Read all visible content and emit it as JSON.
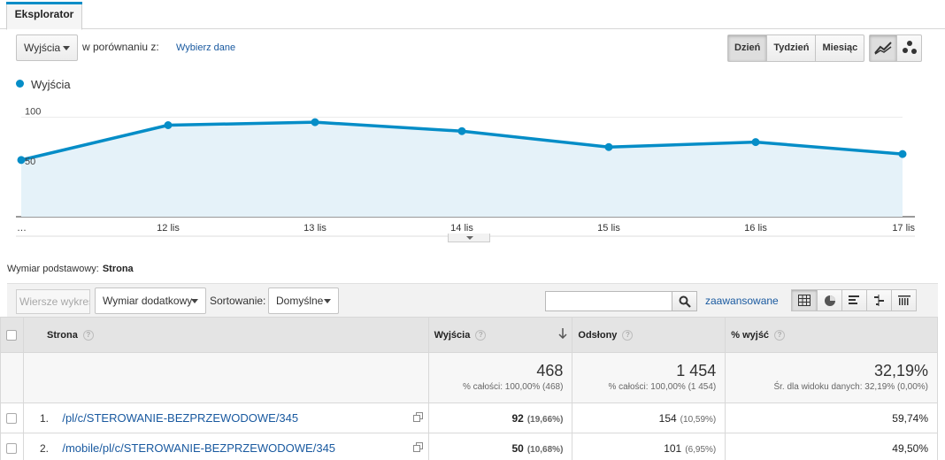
{
  "tabs": {
    "active": "Eksplorator"
  },
  "controls": {
    "metric_select": "Wyjścia",
    "compare_label": "w porównaniu z:",
    "compare_link": "Wybierz dane",
    "granularity": [
      "Dzień",
      "Tydzień",
      "Miesiąc"
    ],
    "granularity_active": "Dzień",
    "chart_type_icons": [
      "line-chart-icon",
      "motion-chart-icon"
    ]
  },
  "chart_data": {
    "type": "area",
    "series": [
      {
        "name": "Wyjścia",
        "values": [
          57,
          92,
          95,
          86,
          70,
          75,
          63
        ]
      }
    ],
    "x": [
      "…",
      "12 lis",
      "13 lis",
      "14 lis",
      "15 lis",
      "16 lis",
      "17 lis"
    ],
    "yticks": [
      100,
      50
    ],
    "ylim": [
      0,
      120
    ],
    "color": "#058dc7",
    "fill": "#e5f2f9",
    "legend": "top-left",
    "grid": true
  },
  "dimension": {
    "label": "Wymiar podstawowy:",
    "value": "Strona"
  },
  "toolbar": {
    "plot_rows": "Wiersze wykresu",
    "secondary_dimension": "Wymiar dodatkowy",
    "sort_label": "Sortowanie:",
    "sort_value": "Domyślne",
    "advanced": "zaawansowane",
    "view_icons": [
      "table-icon",
      "pie-icon",
      "bar-icon",
      "comparison-icon",
      "term-cloud-icon"
    ]
  },
  "table": {
    "headers": {
      "page": "Strona",
      "exits": "Wyjścia",
      "pageviews": "Odsłony",
      "exit_pct": "% wyjść"
    },
    "totals": {
      "exits": "468",
      "exits_sub": "% całości: 100,00% (468)",
      "pageviews": "1 454",
      "pageviews_sub": "% całości: 100,00% (1 454)",
      "exit_pct": "32,19%",
      "exit_pct_sub": "Śr. dla widoku danych: 32,19% (0,00%)"
    },
    "rows": [
      {
        "num": "1.",
        "page": "/pl/c/STEROWANIE-BEZPRZEWODOWE/345",
        "exits": "92",
        "exits_pct": "(19,66%)",
        "pageviews": "154",
        "pageviews_pct": "(10,59%)",
        "exit_pct": "59,74%"
      },
      {
        "num": "2.",
        "page": "/mobile/pl/c/STEROWANIE-BEZPRZEWODOWE/345",
        "exits": "50",
        "exits_pct": "(10,68%)",
        "pageviews": "101",
        "pageviews_pct": "(6,95%)",
        "exit_pct": "49,50%"
      }
    ]
  }
}
